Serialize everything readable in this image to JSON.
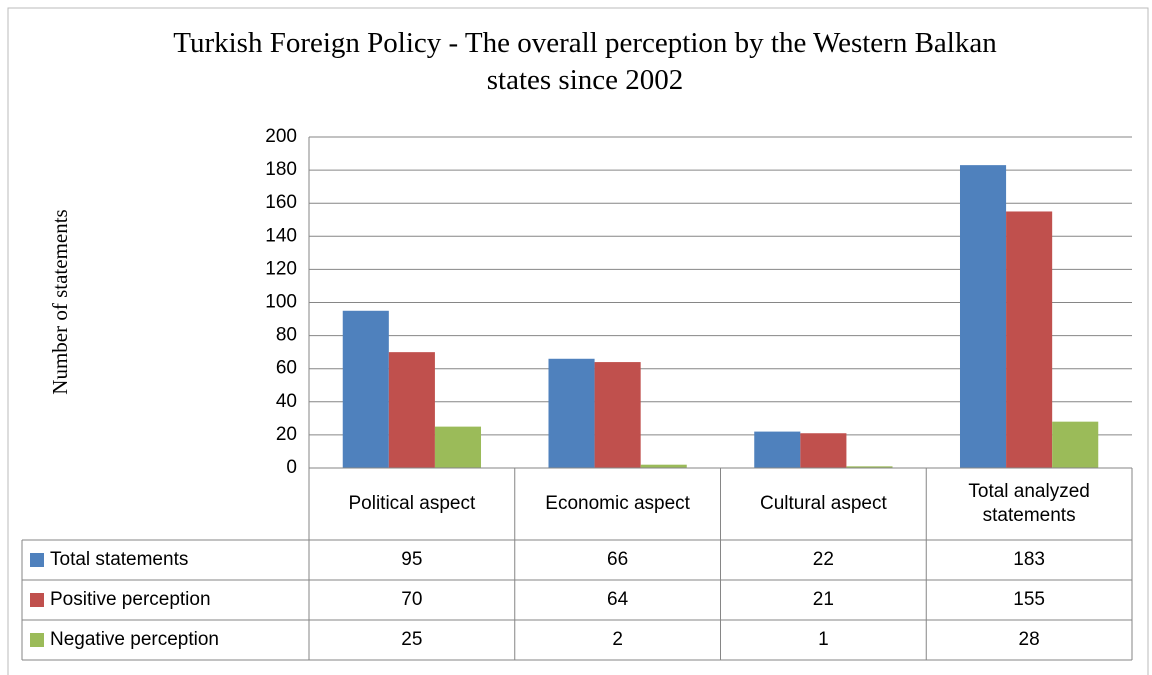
{
  "chart_data": {
    "type": "bar",
    "title": "Turkish Foreign Policy - The overall perception by the Western Balkan states since 2002",
    "y_label": "Number of statements",
    "categories": [
      "Political aspect",
      "Economic aspect",
      "Cultural aspect",
      "Total analyzed statements"
    ],
    "series": [
      {
        "name": "Total statements",
        "color": "#4f81bd",
        "values": [
          95,
          66,
          22,
          183
        ]
      },
      {
        "name": "Positive perception",
        "color": "#c0504d",
        "values": [
          70,
          64,
          21,
          155
        ]
      },
      {
        "name": "Negative perception",
        "color": "#9bbb59",
        "values": [
          25,
          2,
          1,
          28
        ]
      }
    ],
    "ylim": [
      0,
      200
    ],
    "yticks": [
      0,
      20,
      40,
      60,
      80,
      100,
      120,
      140,
      160,
      180,
      200
    ],
    "grid": true
  }
}
